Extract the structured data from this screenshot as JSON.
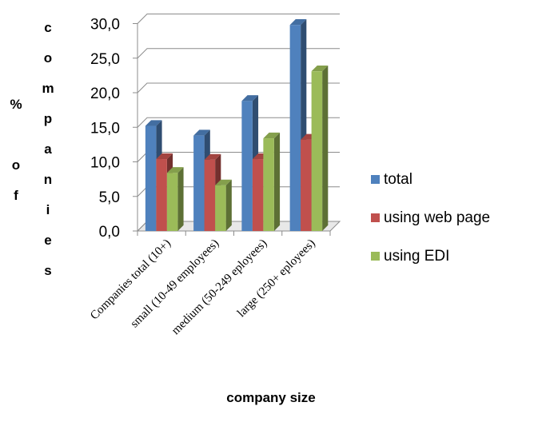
{
  "chart_data": {
    "type": "bar",
    "style": "3d-clustered-column",
    "categories": [
      "Companies total (10+)",
      "small (10-49 employees)",
      "medium (50-249 eployees)",
      "large (250+ eployees)"
    ],
    "series": [
      {
        "name": "total",
        "values": [
          15.2,
          13.8,
          18.8,
          29.8
        ],
        "color": "#4F81BD"
      },
      {
        "name": "using web page",
        "values": [
          10.4,
          10.3,
          10.4,
          13.2
        ],
        "color": "#C0504D"
      },
      {
        "name": "using EDI",
        "values": [
          8.4,
          6.6,
          13.4,
          23.1
        ],
        "color": "#9BBB59"
      }
    ],
    "xlabel": "company size",
    "ylabel": "% of companies",
    "ylim": [
      0,
      30
    ],
    "yticks": [
      "0,0",
      "5,0",
      "10,0",
      "15,0",
      "20,0",
      "25,0",
      "30,0"
    ],
    "grid": true,
    "legend_position": "right"
  }
}
